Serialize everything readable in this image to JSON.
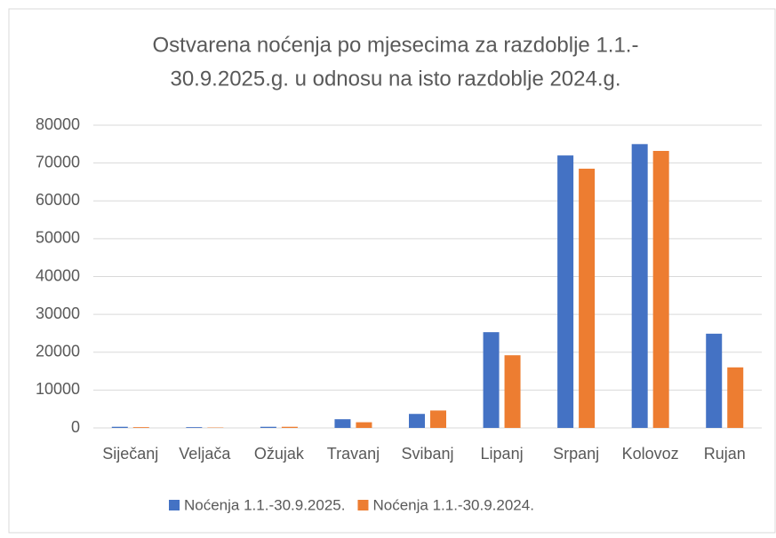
{
  "chart_data": {
    "type": "bar",
    "title": [
      "Ostvarena noćenja po mjesecima za razdoblje 1.1.-",
      "30.9.2025.g. u odnosu na isto razdoblje 2024.g."
    ],
    "categories": [
      "Siječanj",
      "Veljača",
      "Ožujak",
      "Travanj",
      "Svibanj",
      "Lipanj",
      "Srpanj",
      "Kolovoz",
      "Rujan"
    ],
    "series": [
      {
        "name": "Noćenja 1.1.-30.9.2025.",
        "color": "#4472c4",
        "values": [
          300,
          200,
          300,
          2300,
          3700,
          25300,
          72000,
          75000,
          24900
        ]
      },
      {
        "name": "Noćenja 1.1.-30.9.2024.",
        "color": "#ed7d31",
        "values": [
          200,
          100,
          300,
          1500,
          4600,
          19200,
          68500,
          73200,
          16000
        ]
      }
    ],
    "ylim": [
      0,
      80000
    ],
    "yticks": [
      0,
      10000,
      20000,
      30000,
      40000,
      50000,
      60000,
      70000,
      80000
    ],
    "grid": true,
    "legend": "bottom"
  }
}
